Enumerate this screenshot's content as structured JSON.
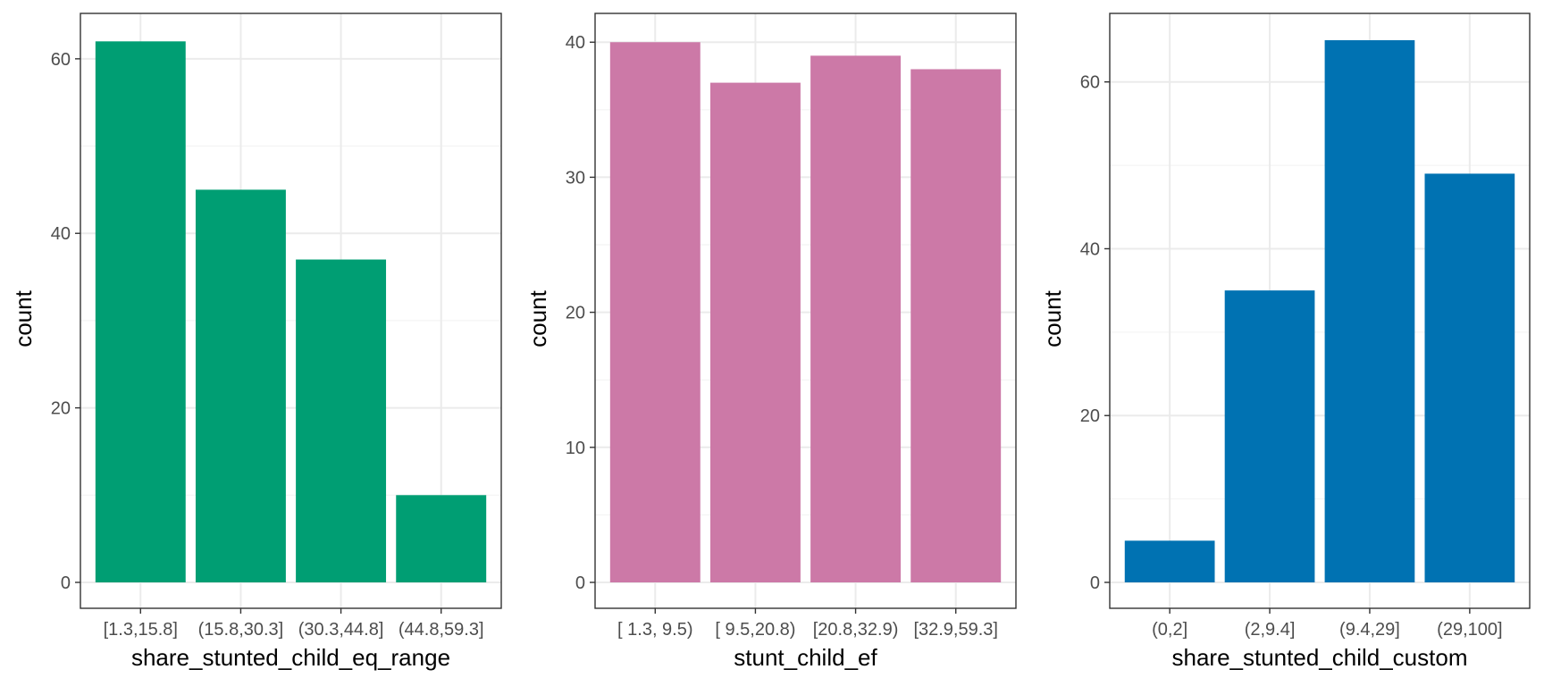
{
  "chart_data": [
    {
      "type": "bar",
      "xlabel": "share_stunted_child_eq_range",
      "ylabel": "count",
      "categories": [
        "[1.3,15.8]",
        "(15.8,30.3]",
        "(30.3,44.8]",
        "(44.8,59.3]"
      ],
      "values": [
        62,
        45,
        37,
        10
      ],
      "ylim": [
        0,
        65
      ],
      "yticks": [
        0,
        20,
        40,
        60
      ],
      "color": "#009E73",
      "grid": true
    },
    {
      "type": "bar",
      "xlabel": "stunt_child_ef",
      "ylabel": "count",
      "categories": [
        "[ 1.3, 9.5)",
        "[ 9.5,20.8)",
        "[20.8,32.9)",
        "[32.9,59.3]"
      ],
      "values": [
        40,
        37,
        39,
        38
      ],
      "ylim": [
        0,
        42
      ],
      "yticks": [
        0,
        10,
        20,
        30,
        40
      ],
      "color": "#CC79A7",
      "grid": true
    },
    {
      "type": "bar",
      "xlabel": "share_stunted_child_custom",
      "ylabel": "count",
      "categories": [
        "(0,2]",
        "(2,9.4]",
        "(9.4,29]",
        "(29,100]"
      ],
      "values": [
        5,
        35,
        65,
        49
      ],
      "ylim": [
        0,
        68
      ],
      "yticks": [
        0,
        20,
        40,
        60
      ],
      "color": "#0072B2",
      "grid": true
    }
  ]
}
